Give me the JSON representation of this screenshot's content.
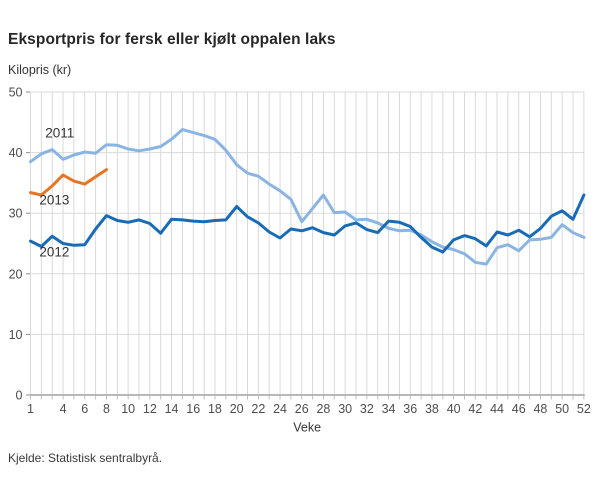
{
  "page": {
    "source": "Kjelde: Statistisk sentralbyrå."
  },
  "chart_data": {
    "type": "line",
    "title": "Eksportpris for fersk eller kjølt oppalen laks",
    "ylabel": "Kilopris (kr)",
    "xlabel": "Veke",
    "ylim": [
      0,
      50
    ],
    "y_ticks": [
      0,
      10,
      20,
      30,
      40,
      50
    ],
    "x_range_weeks": [
      1,
      52
    ],
    "x_tick_weeks": [
      1,
      4,
      6,
      8,
      10,
      12,
      14,
      16,
      18,
      20,
      22,
      24,
      26,
      28,
      30,
      32,
      34,
      36,
      38,
      40,
      42,
      44,
      46,
      48,
      50,
      52
    ],
    "grid": "both",
    "legend_position": "inline-annotations",
    "colors": {
      "grid": "#d9d9d9",
      "axis": "#8e8e8e",
      "tick": "#bdbdbd",
      "tick_text": "#4d4d4d",
      "annotation_text": "#333333"
    },
    "series": [
      {
        "name": "2011",
        "color": "#8ab5e2",
        "start_week": 1,
        "values": [
          38.5,
          39.8,
          40.5,
          38.9,
          39.6,
          40.1,
          39.9,
          41.3,
          41.2,
          40.6,
          40.3,
          40.6,
          41.0,
          42.2,
          43.8,
          43.3,
          42.8,
          42.2,
          40.4,
          38.0,
          36.6,
          36.1,
          34.8,
          33.7,
          32.3,
          28.6,
          30.8,
          33.0,
          30.1,
          30.2,
          28.9,
          29.0,
          28.4,
          27.5,
          27.1,
          27.2,
          26.4,
          25.3,
          24.4,
          24.0,
          23.3,
          21.9,
          21.6,
          24.3,
          24.8,
          23.8,
          25.6,
          25.7,
          26.0,
          28.1,
          26.8,
          26.0
        ]
      },
      {
        "name": "2013",
        "color": "#e87425",
        "start_week": 1,
        "values": [
          33.4,
          33.0,
          34.5,
          36.3,
          35.3,
          34.8,
          36.0,
          37.2
        ]
      },
      {
        "name": "2012",
        "color": "#1a6bb5",
        "start_week": 1,
        "values": [
          25.4,
          24.5,
          26.2,
          25.0,
          24.7,
          24.8,
          27.4,
          29.6,
          28.8,
          28.5,
          28.9,
          28.3,
          26.7,
          29.0,
          28.9,
          28.7,
          28.6,
          28.8,
          28.9,
          31.1,
          29.4,
          28.4,
          26.9,
          25.9,
          27.4,
          27.1,
          27.6,
          26.8,
          26.4,
          27.9,
          28.4,
          27.3,
          26.8,
          28.7,
          28.5,
          27.8,
          26.0,
          24.4,
          23.6,
          25.6,
          26.3,
          25.8,
          24.6,
          26.9,
          26.4,
          27.2,
          26.1,
          27.5,
          29.5,
          30.4,
          29.0,
          33.0
        ]
      }
    ],
    "annotations": [
      {
        "text": "2011",
        "week": 3.7,
        "value": 43.2
      },
      {
        "text": "2013",
        "week": 3.2,
        "value": 32.2
      },
      {
        "text": "2012",
        "week": 3.2,
        "value": 23.6
      }
    ]
  }
}
